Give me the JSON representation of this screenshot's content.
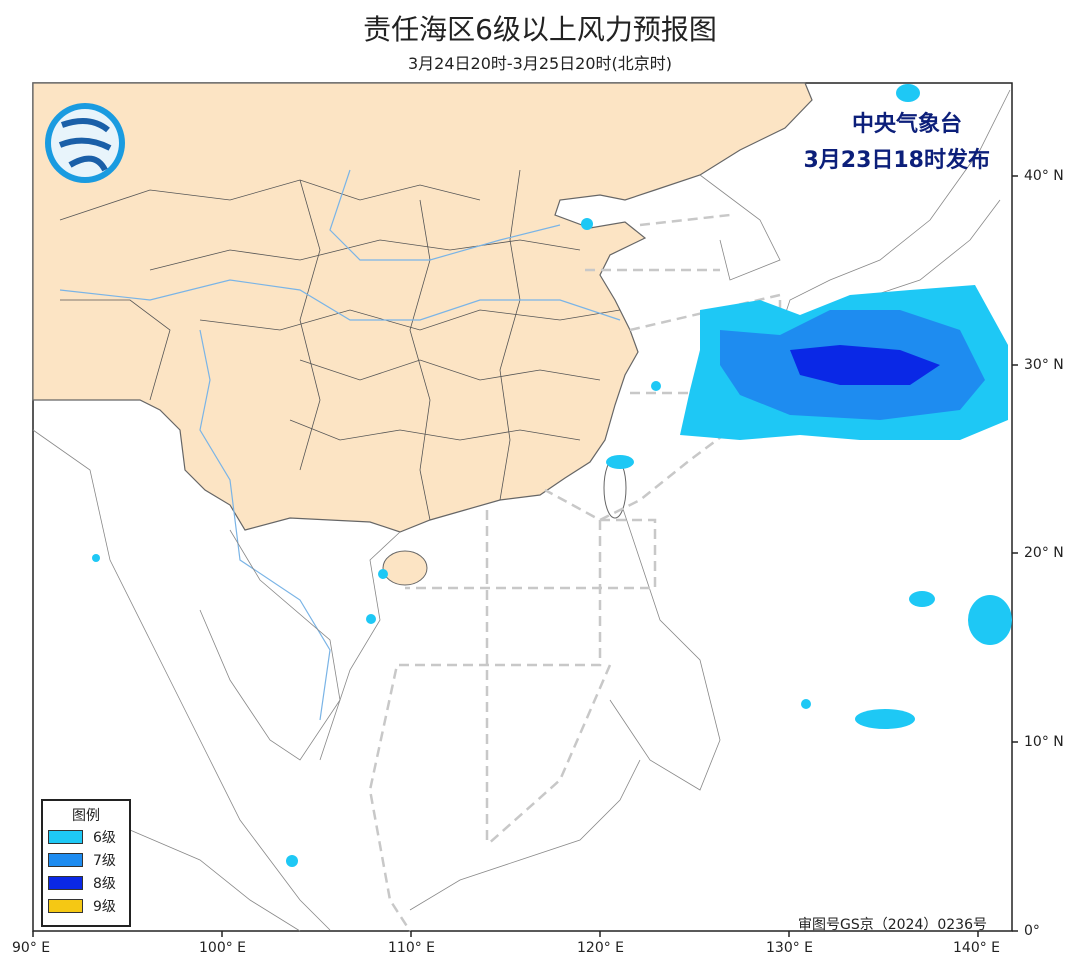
{
  "header": {
    "title": "责任海区6级以上风力预报图",
    "subtitle": "3月24日20时-3月25日20时(北京时)"
  },
  "issuer": {
    "line1": "中央气象台",
    "line2": "3月23日18时发布"
  },
  "legend": {
    "title": "图例",
    "items": [
      {
        "label": "6级",
        "color": "#1ec8f5"
      },
      {
        "label": "7级",
        "color": "#1e8cf0"
      },
      {
        "label": "8级",
        "color": "#0a28e6"
      },
      {
        "label": "9级",
        "color": "#f5c814"
      }
    ]
  },
  "approval": "审图号GS京（2024）0236号",
  "axes": {
    "lon_labels": [
      "90° E",
      "100° E",
      "110° E",
      "120° E",
      "130° E",
      "140° E"
    ],
    "lat_labels": [
      "40° N",
      "30° N",
      "20° N",
      "10° N",
      "0°"
    ]
  },
  "colors": {
    "land": "#fce4c4",
    "border": "#555555",
    "river": "#7ab4e6",
    "sea_area_line": "#c8c8c8"
  }
}
